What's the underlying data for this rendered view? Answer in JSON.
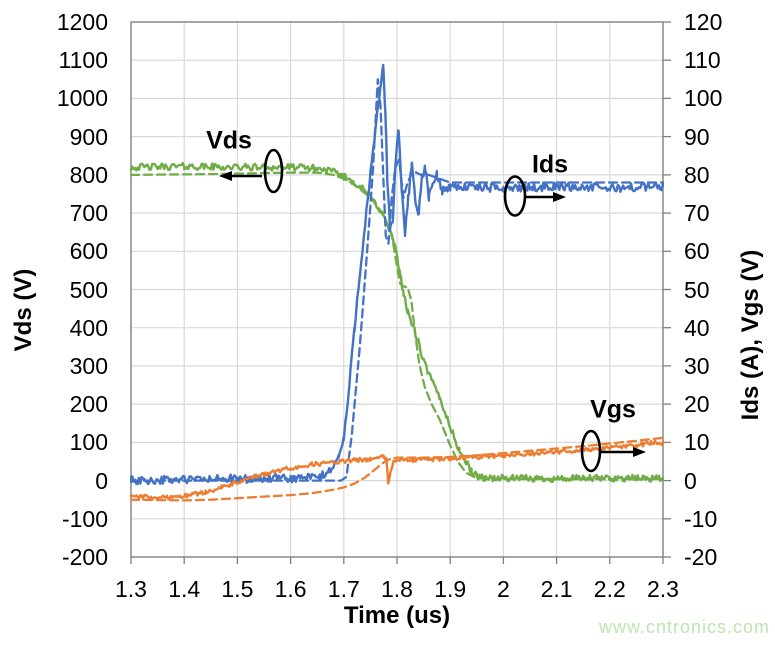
{
  "watermark": "www.cntronics.com",
  "chart_data": {
    "type": "line",
    "title": "",
    "xlabel": "Time (us)",
    "ylabel_left": "Vds (V)",
    "ylabel_right": "Ids (A), Vgs (V)",
    "grid": true,
    "x_axis": {
      "range": [
        1.3,
        2.3
      ],
      "tick_labels": [
        "1.3",
        "1.4",
        "1.5",
        "1.6",
        "1.7",
        "1.8",
        "1.9",
        "2",
        "2.1",
        "2.2",
        "2.3"
      ]
    },
    "left_axis": {
      "range": [
        -200,
        1200
      ],
      "tick_labels_top_to_bottom": [
        "1200",
        "1100",
        "1000",
        "900",
        "800",
        "700",
        "600",
        "500",
        "400",
        "300",
        "200",
        "100",
        "0",
        "-100",
        "-200"
      ]
    },
    "right_axis": {
      "range": [
        -20,
        120
      ],
      "tick_labels_top_to_bottom": [
        "120",
        "110",
        "100",
        "90",
        "80",
        "70",
        "60",
        "50",
        "40",
        "30",
        "20",
        "10",
        "0",
        "-10",
        "-20"
      ]
    },
    "colors": {
      "vds_green": "#70AD47",
      "ids_blue": "#4472C4",
      "vgs_orange": "#ED7D31",
      "grid_gray": "#D9D9D9",
      "axis_gray": "#808080",
      "annotation_black": "#000000",
      "watermark_green": "#bee4b0"
    },
    "annotations": [
      {
        "label": "Vds",
        "series": "Vds",
        "arrow_direction": "left"
      },
      {
        "label": "Ids",
        "series": "Ids",
        "arrow_direction": "right"
      },
      {
        "label": "Vgs",
        "series": "Vgs",
        "arrow_direction": "right"
      }
    ],
    "series": [
      {
        "name": "Vds measured",
        "axis": "left",
        "style": "solid",
        "color": "#70AD47",
        "noise": 9,
        "points": [
          [
            1.3,
            820
          ],
          [
            1.4,
            822
          ],
          [
            1.5,
            820
          ],
          [
            1.6,
            820
          ],
          [
            1.64,
            818
          ],
          [
            1.67,
            812
          ],
          [
            1.695,
            800
          ],
          [
            1.715,
            785
          ],
          [
            1.73,
            770
          ],
          [
            1.745,
            750
          ],
          [
            1.76,
            725
          ],
          [
            1.77,
            705
          ],
          [
            1.78,
            675
          ],
          [
            1.79,
            640
          ],
          [
            1.795,
            615
          ],
          [
            1.8,
            585
          ],
          [
            1.806,
            540
          ],
          [
            1.812,
            495
          ],
          [
            1.82,
            440
          ],
          [
            1.83,
            405
          ],
          [
            1.84,
            362
          ],
          [
            1.85,
            312
          ],
          [
            1.865,
            262
          ],
          [
            1.88,
            218
          ],
          [
            1.895,
            162
          ],
          [
            1.905,
            122
          ],
          [
            1.917,
            80
          ],
          [
            1.928,
            52
          ],
          [
            1.94,
            25
          ],
          [
            1.95,
            12
          ],
          [
            1.965,
            7
          ],
          [
            2.0,
            6
          ],
          [
            2.1,
            5
          ],
          [
            2.2,
            6
          ],
          [
            2.3,
            6
          ]
        ]
      },
      {
        "name": "Vds simulated",
        "axis": "left",
        "style": "dashed",
        "color": "#70AD47",
        "noise": 0,
        "points": [
          [
            1.3,
            800
          ],
          [
            1.45,
            802
          ],
          [
            1.6,
            806
          ],
          [
            1.65,
            806
          ],
          [
            1.68,
            800
          ],
          [
            1.7,
            790
          ],
          [
            1.72,
            775
          ],
          [
            1.74,
            752
          ],
          [
            1.755,
            732
          ],
          [
            1.77,
            705
          ],
          [
            1.78,
            675
          ],
          [
            1.79,
            645
          ],
          [
            1.8,
            560
          ],
          [
            1.806,
            515
          ],
          [
            1.812,
            508
          ],
          [
            1.82,
            506
          ],
          [
            1.827,
            470
          ],
          [
            1.834,
            385
          ],
          [
            1.842,
            305
          ],
          [
            1.852,
            245
          ],
          [
            1.865,
            200
          ],
          [
            1.88,
            160
          ],
          [
            1.9,
            92
          ],
          [
            1.915,
            48
          ],
          [
            1.93,
            20
          ],
          [
            1.95,
            6
          ],
          [
            2.0,
            4
          ],
          [
            2.3,
            4
          ]
        ]
      },
      {
        "name": "Ids measured",
        "axis": "right",
        "style": "solid",
        "color": "#4472C4",
        "noise": 1.1,
        "points": [
          [
            1.3,
            0
          ],
          [
            1.5,
            0.5
          ],
          [
            1.6,
            0.5
          ],
          [
            1.655,
            1
          ],
          [
            1.67,
            2
          ],
          [
            1.69,
            6
          ],
          [
            1.7,
            11
          ],
          [
            1.71,
            24
          ],
          [
            1.72,
            40
          ],
          [
            1.73,
            54
          ],
          [
            1.74,
            67
          ],
          [
            1.75,
            80
          ],
          [
            1.76,
            92
          ],
          [
            1.768,
            102
          ],
          [
            1.774,
            109
          ],
          [
            1.778,
            97
          ],
          [
            1.782,
            78
          ],
          [
            1.787,
            66
          ],
          [
            1.792,
            68
          ],
          [
            1.797,
            82
          ],
          [
            1.803,
            92
          ],
          [
            1.809,
            76
          ],
          [
            1.815,
            64
          ],
          [
            1.821,
            74
          ],
          [
            1.828,
            83
          ],
          [
            1.834,
            74
          ],
          [
            1.841,
            70
          ],
          [
            1.847,
            79
          ],
          [
            1.853,
            82
          ],
          [
            1.86,
            74
          ],
          [
            1.868,
            78
          ],
          [
            1.875,
            80
          ],
          [
            1.885,
            76
          ],
          [
            1.9,
            77
          ],
          [
            2.0,
            76.5
          ],
          [
            2.1,
            77
          ],
          [
            2.2,
            76.5
          ],
          [
            2.3,
            77
          ]
        ]
      },
      {
        "name": "Ids simulated",
        "axis": "right",
        "style": "dashed",
        "color": "#4472C4",
        "noise": 0,
        "points": [
          [
            1.3,
            0
          ],
          [
            1.695,
            0
          ],
          [
            1.705,
            1
          ],
          [
            1.715,
            12
          ],
          [
            1.73,
            35
          ],
          [
            1.745,
            62
          ],
          [
            1.755,
            82
          ],
          [
            1.764,
            105
          ],
          [
            1.769,
            98
          ],
          [
            1.774,
            80
          ],
          [
            1.779,
            64
          ],
          [
            1.784,
            62
          ],
          [
            1.79,
            74
          ],
          [
            1.797,
            82
          ],
          [
            1.804,
            84
          ],
          [
            1.812,
            74
          ],
          [
            1.82,
            78
          ],
          [
            1.83,
            81
          ],
          [
            1.845,
            80
          ],
          [
            1.86,
            80
          ],
          [
            1.88,
            79
          ],
          [
            1.9,
            78
          ],
          [
            2.0,
            78
          ],
          [
            2.3,
            78
          ]
        ]
      },
      {
        "name": "Vgs measured",
        "axis": "right",
        "style": "solid",
        "color": "#ED7D31",
        "noise": 0.55,
        "points": [
          [
            1.3,
            -4
          ],
          [
            1.35,
            -4.5
          ],
          [
            1.4,
            -4
          ],
          [
            1.44,
            -3
          ],
          [
            1.47,
            -1.8
          ],
          [
            1.5,
            -0.5
          ],
          [
            1.53,
            0.8
          ],
          [
            1.56,
            2
          ],
          [
            1.6,
            3.2
          ],
          [
            1.64,
            4.2
          ],
          [
            1.68,
            4.8
          ],
          [
            1.72,
            5.3
          ],
          [
            1.75,
            5.6
          ],
          [
            1.775,
            6.2
          ],
          [
            1.78,
            5.5
          ],
          [
            1.7835,
            -0.5
          ],
          [
            1.788,
            2.5
          ],
          [
            1.793,
            4.8
          ],
          [
            1.8,
            5.3
          ],
          [
            1.83,
            5.4
          ],
          [
            1.86,
            5.5
          ],
          [
            1.9,
            5.8
          ],
          [
            1.95,
            6.2
          ],
          [
            2.0,
            6.6
          ],
          [
            2.05,
            7.0
          ],
          [
            2.1,
            7.5
          ],
          [
            2.15,
            8.0
          ],
          [
            2.2,
            8.6
          ],
          [
            2.25,
            9.2
          ],
          [
            2.28,
            9.9
          ],
          [
            2.3,
            9.8
          ]
        ]
      },
      {
        "name": "Vgs simulated",
        "axis": "right",
        "style": "dashed",
        "color": "#ED7D31",
        "noise": 0,
        "points": [
          [
            1.3,
            -5
          ],
          [
            1.4,
            -5.2
          ],
          [
            1.45,
            -5
          ],
          [
            1.5,
            -4.6
          ],
          [
            1.55,
            -4.2
          ],
          [
            1.6,
            -3.8
          ],
          [
            1.64,
            -3.3
          ],
          [
            1.68,
            -2.4
          ],
          [
            1.7,
            -1.8
          ],
          [
            1.72,
            -0.8
          ],
          [
            1.74,
            0.8
          ],
          [
            1.755,
            2.5
          ],
          [
            1.77,
            4.2
          ],
          [
            1.78,
            5.2
          ],
          [
            1.79,
            5.8
          ],
          [
            1.8,
            6.0
          ],
          [
            1.85,
            6.0
          ],
          [
            1.9,
            6.2
          ],
          [
            1.95,
            6.6
          ],
          [
            2.0,
            7.2
          ],
          [
            2.05,
            7.8
          ],
          [
            2.1,
            8.4
          ],
          [
            2.15,
            9.0
          ],
          [
            2.2,
            9.7
          ],
          [
            2.25,
            10.4
          ],
          [
            2.3,
            11.2
          ]
        ]
      }
    ]
  }
}
